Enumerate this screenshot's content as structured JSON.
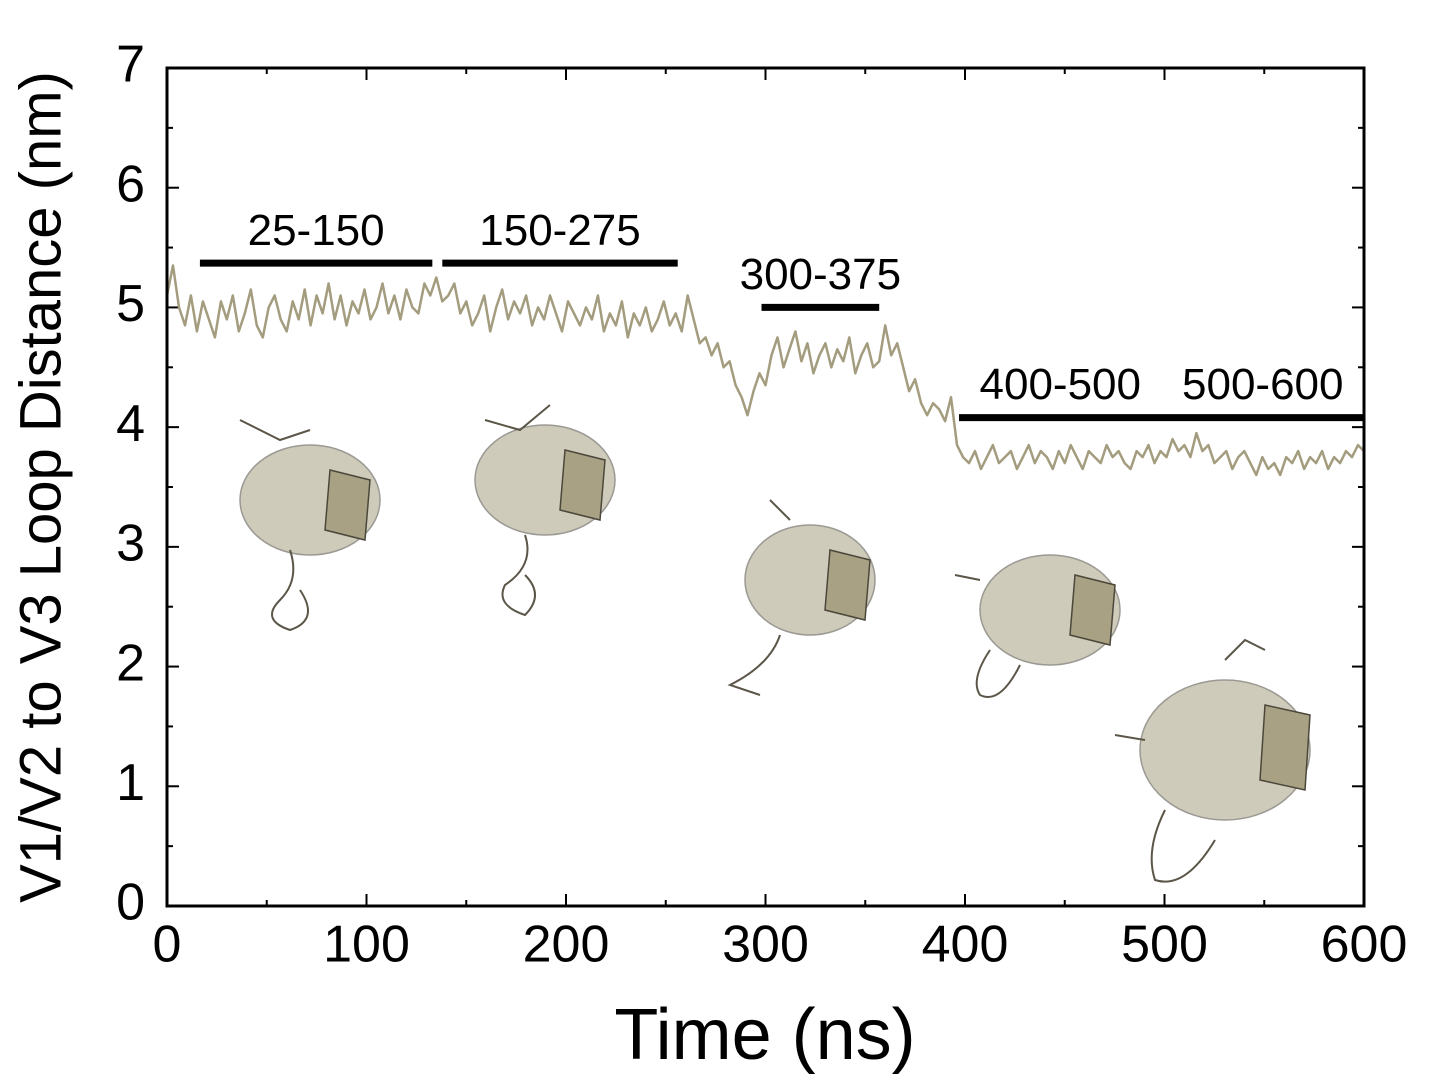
{
  "chart_data": {
    "type": "line",
    "xlabel": "Time (ns)",
    "ylabel": "V1/V2 to V3 Loop Distance (nm)",
    "xlim": [
      0,
      600
    ],
    "xticks": [
      0,
      100,
      200,
      300,
      400,
      500,
      600
    ],
    "ylim": [
      0,
      7
    ],
    "yticks": [
      0,
      1,
      2,
      3,
      4,
      5,
      6,
      7
    ],
    "series": [
      {
        "color": "#a39c7e",
        "x": [
          0,
          3,
          6,
          9,
          12,
          15,
          18,
          21,
          24,
          27,
          30,
          33,
          36,
          39,
          42,
          45,
          48,
          51,
          54,
          57,
          60,
          63,
          66,
          69,
          72,
          75,
          78,
          81,
          84,
          87,
          90,
          93,
          96,
          99,
          102,
          105,
          108,
          111,
          114,
          117,
          120,
          123,
          126,
          129,
          132,
          135,
          138,
          141,
          144,
          147,
          150,
          153,
          156,
          159,
          162,
          165,
          168,
          171,
          174,
          177,
          180,
          183,
          186,
          189,
          192,
          195,
          198,
          201,
          204,
          207,
          210,
          213,
          216,
          219,
          222,
          225,
          228,
          231,
          234,
          237,
          240,
          243,
          246,
          249,
          252,
          255,
          258,
          261,
          264,
          267,
          270,
          273,
          276,
          279,
          282,
          285,
          288,
          291,
          294,
          297,
          300,
          303,
          306,
          309,
          312,
          315,
          318,
          321,
          324,
          327,
          330,
          333,
          336,
          339,
          342,
          345,
          348,
          351,
          354,
          357,
          360,
          363,
          366,
          369,
          372,
          375,
          378,
          381,
          384,
          387,
          390,
          393,
          396,
          399,
          402,
          405,
          408,
          411,
          414,
          417,
          420,
          423,
          426,
          429,
          432,
          435,
          438,
          441,
          444,
          447,
          450,
          453,
          456,
          459,
          462,
          465,
          468,
          471,
          474,
          477,
          480,
          483,
          486,
          489,
          492,
          495,
          498,
          501,
          504,
          507,
          510,
          513,
          516,
          519,
          522,
          525,
          528,
          531,
          534,
          537,
          540,
          543,
          546,
          549,
          552,
          555,
          558,
          561,
          564,
          567,
          570,
          573,
          576,
          579,
          582,
          585,
          588,
          591,
          594,
          597,
          600
        ],
        "values": [
          5.1,
          5.35,
          5.0,
          4.85,
          5.1,
          4.8,
          5.05,
          4.9,
          4.75,
          5.05,
          4.9,
          5.1,
          4.8,
          4.95,
          5.15,
          4.85,
          4.75,
          5.0,
          5.1,
          4.9,
          4.8,
          5.05,
          4.9,
          5.15,
          4.85,
          5.1,
          4.95,
          5.2,
          4.9,
          5.1,
          4.85,
          5.05,
          4.95,
          5.15,
          4.9,
          5.0,
          5.2,
          4.95,
          5.1,
          4.9,
          5.15,
          5.0,
          4.95,
          5.2,
          5.1,
          5.25,
          5.05,
          5.1,
          5.2,
          4.95,
          5.05,
          4.85,
          4.95,
          5.1,
          4.8,
          5.0,
          5.15,
          4.9,
          5.05,
          4.95,
          5.1,
          4.85,
          5.0,
          4.9,
          5.1,
          4.95,
          4.8,
          5.05,
          4.95,
          4.85,
          5.0,
          4.9,
          5.1,
          4.8,
          4.95,
          4.85,
          5.05,
          4.75,
          4.95,
          4.85,
          5.0,
          4.8,
          4.9,
          5.05,
          4.85,
          4.95,
          4.8,
          5.1,
          4.9,
          4.7,
          4.75,
          4.6,
          4.7,
          4.5,
          4.55,
          4.35,
          4.25,
          4.1,
          4.3,
          4.45,
          4.35,
          4.6,
          4.75,
          4.5,
          4.65,
          4.8,
          4.55,
          4.7,
          4.45,
          4.6,
          4.7,
          4.5,
          4.65,
          4.55,
          4.75,
          4.45,
          4.6,
          4.7,
          4.5,
          4.55,
          4.85,
          4.6,
          4.7,
          4.5,
          4.3,
          4.4,
          4.2,
          4.1,
          4.2,
          4.15,
          4.05,
          4.25,
          3.85,
          3.75,
          3.7,
          3.8,
          3.65,
          3.75,
          3.85,
          3.7,
          3.75,
          3.8,
          3.65,
          3.75,
          3.85,
          3.7,
          3.8,
          3.75,
          3.65,
          3.8,
          3.7,
          3.85,
          3.75,
          3.65,
          3.8,
          3.75,
          3.7,
          3.85,
          3.75,
          3.8,
          3.7,
          3.65,
          3.8,
          3.75,
          3.85,
          3.7,
          3.8,
          3.75,
          3.9,
          3.8,
          3.85,
          3.75,
          3.95,
          3.8,
          3.85,
          3.7,
          3.75,
          3.8,
          3.65,
          3.75,
          3.8,
          3.7,
          3.6,
          3.75,
          3.65,
          3.7,
          3.6,
          3.75,
          3.7,
          3.8,
          3.65,
          3.75,
          3.7,
          3.8,
          3.65,
          3.75,
          3.7,
          3.8,
          3.75,
          3.85,
          3.8
        ]
      }
    ],
    "annotations": [
      {
        "labels": [
          "25-150"
        ],
        "x": [
          16.5,
          133
        ],
        "y": 5.37
      },
      {
        "labels": [
          "150-275"
        ],
        "x": [
          138,
          256
        ],
        "y": 5.37
      },
      {
        "labels": [
          "300-375"
        ],
        "x": [
          298,
          357
        ],
        "y": 5.0
      },
      {
        "labels": [
          "400-500",
          "500-600"
        ],
        "x": [
          397,
          600
        ],
        "y": 4.08
      }
    ]
  }
}
